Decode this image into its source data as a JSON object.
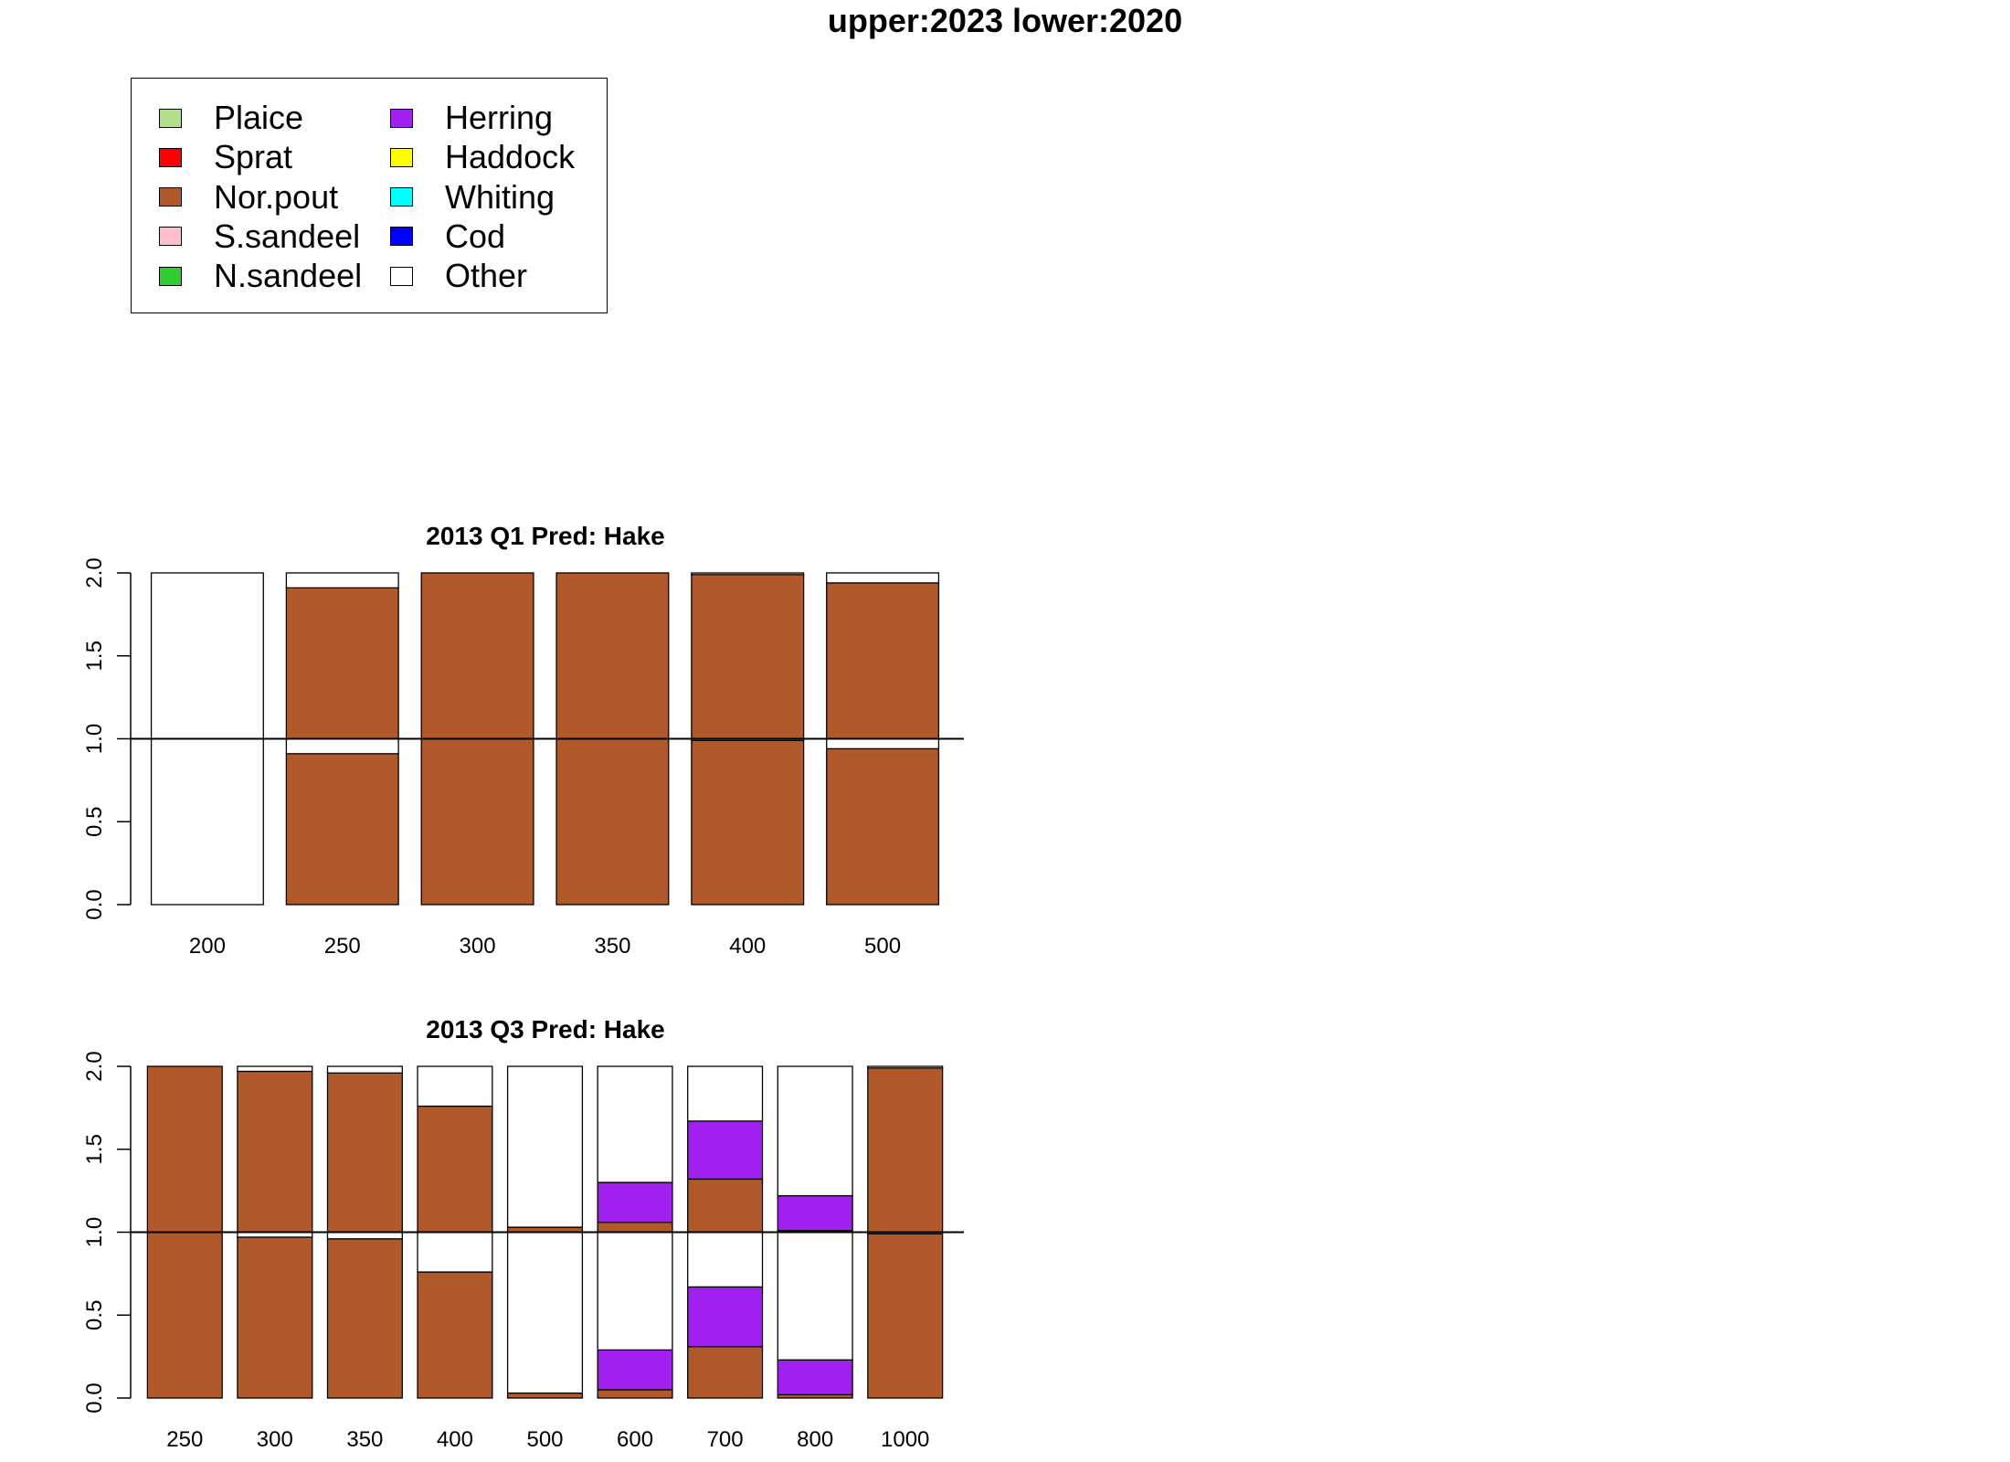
{
  "title": "upper:2023  lower:2020",
  "legend": {
    "items": [
      {
        "label": "Plaice",
        "color": "#b2df8a"
      },
      {
        "label": "Sprat",
        "color": "#ff0000"
      },
      {
        "label": "Nor.pout",
        "color": "#b05a2c"
      },
      {
        "label": "S.sandeel",
        "color": "#ffc0cb"
      },
      {
        "label": "N.sandeel",
        "color": "#32cd32"
      },
      {
        "label": "Herring",
        "color": "#a020f0"
      },
      {
        "label": "Haddock",
        "color": "#ffff00"
      },
      {
        "label": "Whiting",
        "color": "#00ffff"
      },
      {
        "label": "Cod",
        "color": "#0000ff"
      },
      {
        "label": "Other",
        "color": "#ffffff"
      }
    ]
  },
  "chart_data": [
    {
      "type": "bar",
      "stacked": true,
      "title": "2013 Q1  Pred: Hake",
      "categories": [
        "200",
        "250",
        "300",
        "350",
        "400",
        "500"
      ],
      "ylim": [
        0,
        2
      ],
      "yticks": [
        "0.0",
        "0.5",
        "1.0",
        "1.5",
        "2.0"
      ],
      "reference_line": 1.0,
      "lower": {
        "Nor.pout": [
          0.0,
          0.91,
          1.0,
          1.0,
          0.99,
          0.94
        ],
        "Herring": [
          0,
          0,
          0,
          0,
          0,
          0
        ],
        "Other": [
          1.0,
          0.09,
          0.0,
          0.0,
          0.01,
          0.06
        ]
      },
      "upper": {
        "Nor.pout": [
          0.0,
          0.91,
          1.0,
          1.0,
          0.99,
          0.94
        ],
        "Herring": [
          0,
          0,
          0,
          0,
          0,
          0
        ],
        "Other": [
          1.0,
          0.09,
          0.0,
          0.0,
          0.01,
          0.06
        ]
      }
    },
    {
      "type": "bar",
      "stacked": true,
      "title": "2013 Q3  Pred: Hake",
      "categories": [
        "250",
        "300",
        "350",
        "400",
        "500",
        "600",
        "700",
        "800",
        "1000"
      ],
      "ylim": [
        0,
        2
      ],
      "yticks": [
        "0.0",
        "0.5",
        "1.0",
        "1.5",
        "2.0"
      ],
      "reference_line": 1.0,
      "lower": {
        "Nor.pout": [
          1.0,
          0.97,
          0.96,
          0.76,
          0.03,
          0.05,
          0.31,
          0.02,
          0.99
        ],
        "Herring": [
          0,
          0,
          0,
          0,
          0,
          0.24,
          0.36,
          0.21,
          0
        ],
        "Other": [
          0.0,
          0.03,
          0.04,
          0.24,
          0.97,
          0.71,
          0.33,
          0.77,
          0.01
        ]
      },
      "upper": {
        "Nor.pout": [
          1.0,
          0.97,
          0.96,
          0.76,
          0.03,
          0.06,
          0.32,
          0.01,
          0.99
        ],
        "Herring": [
          0,
          0,
          0,
          0,
          0,
          0.24,
          0.35,
          0.21,
          0
        ],
        "Other": [
          0.0,
          0.03,
          0.04,
          0.24,
          0.97,
          0.7,
          0.33,
          0.78,
          0.01
        ]
      }
    }
  ]
}
